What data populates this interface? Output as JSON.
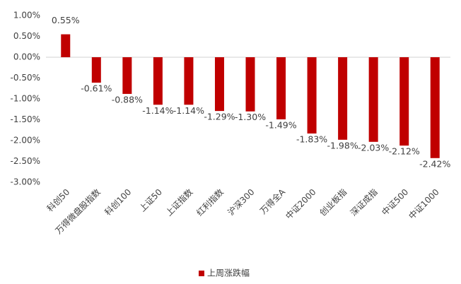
{
  "chart_data": {
    "type": "bar",
    "categories": [
      "科创50",
      "万得微盘股指数",
      "科创100",
      "上证50",
      "上证指数",
      "红利指数",
      "沪深300",
      "万得全A",
      "中证2000",
      "创业板指",
      "深证成指",
      "中证500",
      "中证1000"
    ],
    "series": [
      {
        "name": "上周涨跌幅",
        "color": "#c00000",
        "values": [
          0.55,
          -0.61,
          -0.88,
          -1.14,
          -1.14,
          -1.29,
          -1.3,
          -1.49,
          -1.83,
          -1.98,
          -2.03,
          -2.12,
          -2.42
        ],
        "value_labels": [
          "0.55%",
          "-0.61%",
          "-0.88%",
          "-1.14%",
          "-1.14%",
          "-1.29%",
          "-1.30%",
          "-1.49%",
          "-1.83%",
          "-1.98%",
          "-2.03%",
          "-2.12%",
          "-2.42%"
        ]
      }
    ],
    "ylim": [
      -3,
      1
    ],
    "yticks": [
      {
        "value": 1,
        "label": "1.00%"
      },
      {
        "value": 0.5,
        "label": "0.50%"
      },
      {
        "value": 0,
        "label": "0.00%"
      },
      {
        "value": -0.5,
        "label": "-0.50%"
      },
      {
        "value": -1,
        "label": "-1.00%"
      },
      {
        "value": -1.5,
        "label": "-1.50%"
      },
      {
        "value": -2,
        "label": "-2.00%"
      },
      {
        "value": -2.5,
        "label": "-2.50%"
      },
      {
        "value": -3,
        "label": "-3.00%"
      }
    ],
    "legend": "bottom"
  }
}
